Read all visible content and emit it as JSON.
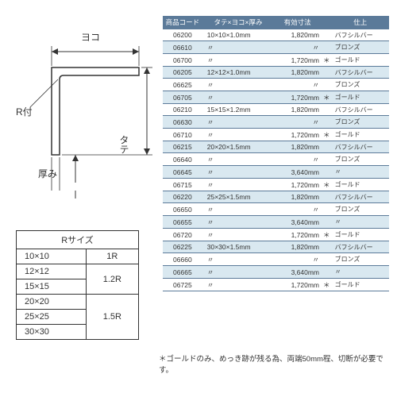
{
  "diagram": {
    "labels": {
      "yoko": "ヨコ",
      "tate": "タテ",
      "atsumi": "厚み",
      "r_tsuki": "R付"
    }
  },
  "r_table": {
    "header": "Rサイズ",
    "rows": [
      {
        "size": "10×10",
        "r": "1R",
        "rowspan": 1
      },
      {
        "size": "12×12",
        "r": "1.2R",
        "rowspan": 2
      },
      {
        "size": "15×15"
      },
      {
        "size": "20×20",
        "r": "1.5R",
        "rowspan": 3
      },
      {
        "size": "25×25"
      },
      {
        "size": "30×30"
      }
    ]
  },
  "spec_table": {
    "headers": [
      "商品コード",
      "タテ×ヨコ×厚み",
      "有効寸法",
      "",
      "仕上"
    ],
    "col_widths": [
      "44px",
      "80px",
      "52px",
      "12px",
      "64px"
    ],
    "ditto": "〃",
    "rows": [
      {
        "code": "06200",
        "dim": "10×10×1.0mm",
        "len": "1,820mm",
        "star": "",
        "fin": "バフシルバー",
        "alt": false
      },
      {
        "code": "06610",
        "dim": "〃",
        "len": "〃",
        "star": "",
        "fin": "ブロンズ",
        "alt": true
      },
      {
        "code": "06700",
        "dim": "〃",
        "len": "1,720mm",
        "star": "＊",
        "fin": "ゴールド",
        "alt": false
      },
      {
        "code": "06205",
        "dim": "12×12×1.0mm",
        "len": "1,820mm",
        "star": "",
        "fin": "バフシルバー",
        "alt": true
      },
      {
        "code": "06625",
        "dim": "〃",
        "len": "〃",
        "star": "",
        "fin": "ブロンズ",
        "alt": false
      },
      {
        "code": "06705",
        "dim": "〃",
        "len": "1,720mm",
        "star": "＊",
        "fin": "ゴールド",
        "alt": true
      },
      {
        "code": "06210",
        "dim": "15×15×1.2mm",
        "len": "1,820mm",
        "star": "",
        "fin": "バフシルバー",
        "alt": false
      },
      {
        "code": "06630",
        "dim": "〃",
        "len": "〃",
        "star": "",
        "fin": "ブロンズ",
        "alt": true
      },
      {
        "code": "06710",
        "dim": "〃",
        "len": "1,720mm",
        "star": "＊",
        "fin": "ゴールド",
        "alt": false
      },
      {
        "code": "06215",
        "dim": "20×20×1.5mm",
        "len": "1,820mm",
        "star": "",
        "fin": "バフシルバー",
        "alt": true
      },
      {
        "code": "06640",
        "dim": "〃",
        "len": "〃",
        "star": "",
        "fin": "ブロンズ",
        "alt": false
      },
      {
        "code": "06645",
        "dim": "〃",
        "len": "3,640mm",
        "star": "",
        "fin": "〃",
        "alt": true
      },
      {
        "code": "06715",
        "dim": "〃",
        "len": "1,720mm",
        "star": "＊",
        "fin": "ゴールド",
        "alt": false
      },
      {
        "code": "06220",
        "dim": "25×25×1.5mm",
        "len": "1,820mm",
        "star": "",
        "fin": "バフシルバー",
        "alt": true
      },
      {
        "code": "06650",
        "dim": "〃",
        "len": "〃",
        "star": "",
        "fin": "ブロンズ",
        "alt": false
      },
      {
        "code": "06655",
        "dim": "〃",
        "len": "3,640mm",
        "star": "",
        "fin": "〃",
        "alt": true
      },
      {
        "code": "06720",
        "dim": "〃",
        "len": "1,720mm",
        "star": "＊",
        "fin": "ゴールド",
        "alt": false
      },
      {
        "code": "06225",
        "dim": "30×30×1.5mm",
        "len": "1,820mm",
        "star": "",
        "fin": "バフシルバー",
        "alt": true
      },
      {
        "code": "06660",
        "dim": "〃",
        "len": "〃",
        "star": "",
        "fin": "ブロンズ",
        "alt": false
      },
      {
        "code": "06665",
        "dim": "〃",
        "len": "3,640mm",
        "star": "",
        "fin": "〃",
        "alt": true
      },
      {
        "code": "06725",
        "dim": "〃",
        "len": "1,720mm",
        "star": "＊",
        "fin": "ゴールド",
        "alt": false
      }
    ]
  },
  "footnote": "＊ゴールドのみ、めっき跡が残る為、両端50mm程、切断が必要です。"
}
